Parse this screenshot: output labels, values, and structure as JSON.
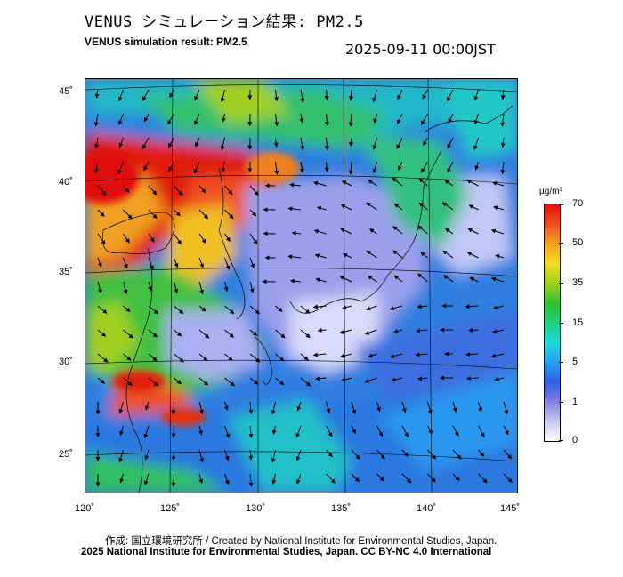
{
  "title_jp": "VENUS シミュレーション結果: PM2.5",
  "title_en": "VENUS simulation result: PM2.5",
  "timestamp": "2025-09-11 00:00JST",
  "lat_labels": [
    "45˚",
    "40˚",
    "35˚",
    "30˚",
    "25˚"
  ],
  "lon_labels": [
    "120˚",
    "125˚",
    "130˚",
    "135˚",
    "140˚",
    "145˚"
  ],
  "colorbar": {
    "unit": "µg/m³",
    "ticks": [
      "70",
      "50",
      "35",
      "15",
      "5",
      "1",
      "0"
    ],
    "colors": [
      "#ffffff",
      "#c8c8f0",
      "#8080e0",
      "#3060e0",
      "#2aa0f0",
      "#20d8d8",
      "#20d080",
      "#30c030",
      "#a0d020",
      "#f0e020",
      "#f0a020",
      "#f05020",
      "#e01010"
    ]
  },
  "credit_line1": "作成: 国立環境研究所 / Created by National Institute for Environmental Studies, Japan.",
  "credit_line2": "2025 National Institute for Environmental Studies, Japan. CC BY-NC 4.0 International"
}
